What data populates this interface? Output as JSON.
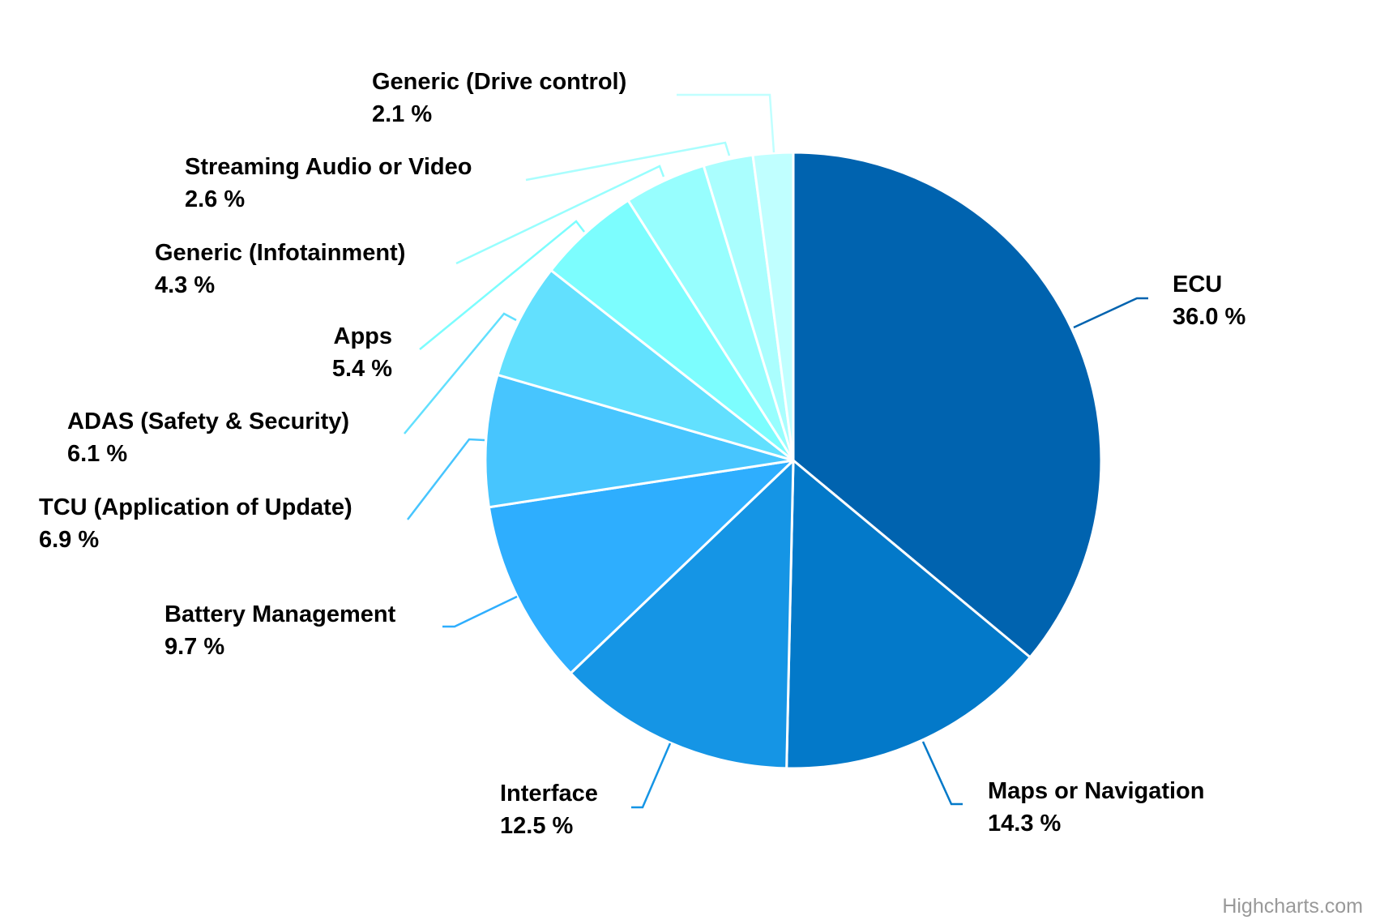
{
  "chart_data": {
    "type": "pie",
    "title": "",
    "categories": [
      "ECU",
      "Maps or Navigation",
      "Interface",
      "Battery Management",
      "TCU (Application of Update)",
      "ADAS (Safety & Security)",
      "Apps",
      "Generic (Infotainment)",
      "Streaming Audio or Video",
      "Generic (Drive control)"
    ],
    "values": [
      36.0,
      14.3,
      12.5,
      9.7,
      6.9,
      6.1,
      5.4,
      4.3,
      2.6,
      2.1
    ],
    "value_labels": [
      "36.0 %",
      "14.3 %",
      "12.5 %",
      "9.7 %",
      "6.9 %",
      "6.1 %",
      "5.4 %",
      "4.3 %",
      "2.6 %",
      "2.1 %"
    ],
    "colors": [
      "#0063af",
      "#0379c9",
      "#1595e5",
      "#2eaefe",
      "#47c5fe",
      "#62e0fe",
      "#7cfdfe",
      "#97fefe",
      "#aafefe",
      "#c0ffff"
    ],
    "legend": "none"
  },
  "credit": "Highcharts.com"
}
